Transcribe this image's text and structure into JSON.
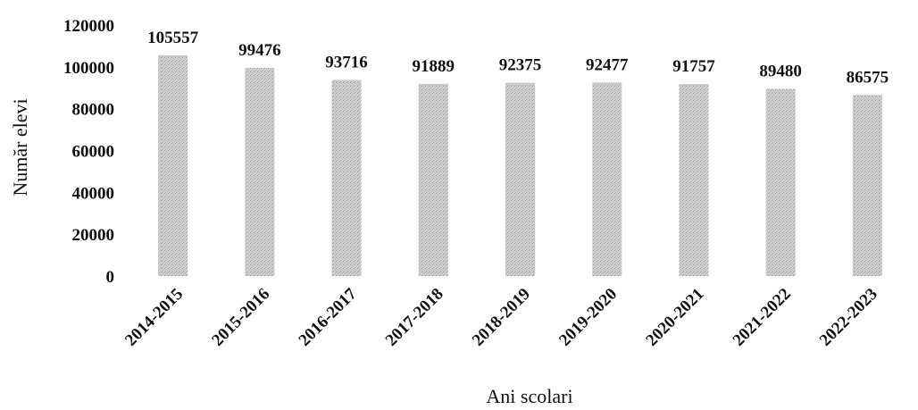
{
  "chart_data": {
    "type": "bar",
    "categories": [
      "2014-2015",
      "2015-2016",
      "2016-2017",
      "2017-2018",
      "2018-2019",
      "2019-2020",
      "2020-2021",
      "2021-2022",
      "2022-2023"
    ],
    "values": [
      105557,
      99476,
      93716,
      91889,
      92375,
      92477,
      91757,
      89480,
      86575
    ],
    "xlabel": "Ani scolari",
    "ylabel": "Număr elevi",
    "ylim": [
      0,
      120000
    ],
    "yticks": [
      "0",
      "20000",
      "40000",
      "60000",
      "80000",
      "100000",
      "120000"
    ],
    "data_labels": [
      "105557",
      "99476",
      "93716",
      "91889",
      "92375",
      "92477",
      "91757",
      "89480",
      "86575"
    ],
    "grid": false,
    "legend": "none",
    "bar_color": "#c8c8c8"
  }
}
